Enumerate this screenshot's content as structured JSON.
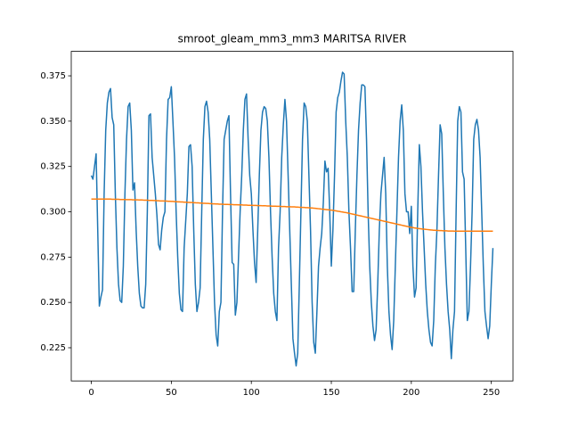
{
  "chart_data": {
    "type": "line",
    "title": "smroot_gleam_mm3_mm3 MARITSA RIVER",
    "x": [
      0,
      1,
      2,
      3,
      4,
      5,
      6,
      7,
      8,
      9,
      10,
      11,
      12,
      13,
      14,
      15,
      16,
      17,
      18,
      19,
      20,
      21,
      22,
      23,
      24,
      25,
      26,
      27,
      28,
      29,
      30,
      31,
      32,
      33,
      34,
      35,
      36,
      37,
      38,
      39,
      40,
      41,
      42,
      43,
      44,
      45,
      46,
      47,
      48,
      49,
      50,
      51,
      52,
      53,
      54,
      55,
      56,
      57,
      58,
      59,
      60,
      61,
      62,
      63,
      64,
      65,
      66,
      67,
      68,
      69,
      70,
      71,
      72,
      73,
      74,
      75,
      76,
      77,
      78,
      79,
      80,
      81,
      82,
      83,
      84,
      85,
      86,
      87,
      88,
      89,
      90,
      91,
      92,
      93,
      94,
      95,
      96,
      97,
      98,
      99,
      100,
      101,
      102,
      103,
      104,
      105,
      106,
      107,
      108,
      109,
      110,
      111,
      112,
      113,
      114,
      115,
      116,
      117,
      118,
      119,
      120,
      121,
      122,
      123,
      124,
      125,
      126,
      127,
      128,
      129,
      130,
      131,
      132,
      133,
      134,
      135,
      136,
      137,
      138,
      139,
      140,
      141,
      142,
      143,
      144,
      145,
      146,
      147,
      148,
      149,
      150,
      151,
      152,
      153,
      154,
      155,
      156,
      157,
      158,
      159,
      160,
      161,
      162,
      163,
      164,
      165,
      166,
      167,
      168,
      169,
      170,
      171,
      172,
      173,
      174,
      175,
      176,
      177,
      178,
      179,
      180,
      181,
      182,
      183,
      184,
      185,
      186,
      187,
      188,
      189,
      190,
      191,
      192,
      193,
      194,
      195,
      196,
      197,
      198,
      199,
      200,
      201,
      202,
      203,
      204,
      205,
      206,
      207,
      208,
      209,
      210,
      211,
      212,
      213,
      214,
      215,
      216,
      217,
      218,
      219,
      220,
      221,
      222,
      223,
      224,
      225,
      226,
      227,
      228,
      229,
      230,
      231,
      232,
      233,
      234,
      235,
      236,
      237,
      238,
      239,
      240,
      241,
      242,
      243,
      244,
      245,
      246,
      247,
      248,
      249,
      250,
      251
    ],
    "series": [
      {
        "color": "#1f77b4",
        "values": [
          0.32,
          0.318,
          0.325,
          0.332,
          0.29,
          0.248,
          0.253,
          0.257,
          0.31,
          0.345,
          0.36,
          0.366,
          0.368,
          0.352,
          0.348,
          0.31,
          0.28,
          0.26,
          0.251,
          0.25,
          0.27,
          0.31,
          0.34,
          0.358,
          0.36,
          0.345,
          0.312,
          0.316,
          0.29,
          0.27,
          0.255,
          0.248,
          0.247,
          0.247,
          0.26,
          0.3,
          0.353,
          0.354,
          0.33,
          0.32,
          0.31,
          0.298,
          0.282,
          0.279,
          0.29,
          0.297,
          0.3,
          0.34,
          0.362,
          0.363,
          0.369,
          0.35,
          0.33,
          0.3,
          0.275,
          0.255,
          0.246,
          0.245,
          0.28,
          0.295,
          0.31,
          0.336,
          0.337,
          0.325,
          0.29,
          0.26,
          0.245,
          0.25,
          0.258,
          0.3,
          0.34,
          0.358,
          0.361,
          0.355,
          0.34,
          0.31,
          0.28,
          0.25,
          0.232,
          0.226,
          0.245,
          0.25,
          0.3,
          0.34,
          0.345,
          0.35,
          0.353,
          0.31,
          0.272,
          0.271,
          0.243,
          0.25,
          0.275,
          0.3,
          0.32,
          0.345,
          0.362,
          0.365,
          0.34,
          0.32,
          0.31,
          0.29,
          0.272,
          0.261,
          0.29,
          0.32,
          0.345,
          0.355,
          0.358,
          0.357,
          0.35,
          0.33,
          0.3,
          0.275,
          0.255,
          0.245,
          0.24,
          0.28,
          0.3,
          0.33,
          0.348,
          0.362,
          0.35,
          0.32,
          0.29,
          0.26,
          0.23,
          0.222,
          0.215,
          0.222,
          0.26,
          0.3,
          0.34,
          0.36,
          0.358,
          0.35,
          0.32,
          0.29,
          0.25,
          0.228,
          0.222,
          0.245,
          0.27,
          0.28,
          0.288,
          0.305,
          0.328,
          0.322,
          0.324,
          0.3,
          0.27,
          0.29,
          0.32,
          0.355,
          0.363,
          0.366,
          0.372,
          0.377,
          0.376,
          0.35,
          0.33,
          0.3,
          0.28,
          0.256,
          0.256,
          0.29,
          0.32,
          0.345,
          0.36,
          0.37,
          0.37,
          0.369,
          0.34,
          0.3,
          0.27,
          0.25,
          0.237,
          0.229,
          0.235,
          0.26,
          0.29,
          0.31,
          0.32,
          0.33,
          0.31,
          0.27,
          0.245,
          0.232,
          0.224,
          0.24,
          0.27,
          0.3,
          0.33,
          0.35,
          0.359,
          0.345,
          0.31,
          0.3,
          0.3,
          0.288,
          0.303,
          0.27,
          0.253,
          0.258,
          0.3,
          0.337,
          0.325,
          0.3,
          0.28,
          0.26,
          0.245,
          0.235,
          0.228,
          0.226,
          0.24,
          0.27,
          0.29,
          0.32,
          0.348,
          0.343,
          0.31,
          0.28,
          0.26,
          0.245,
          0.235,
          0.219,
          0.235,
          0.245,
          0.3,
          0.35,
          0.358,
          0.355,
          0.322,
          0.318,
          0.28,
          0.24,
          0.245,
          0.27,
          0.3,
          0.34,
          0.348,
          0.351,
          0.345,
          0.33,
          0.3,
          0.27,
          0.245,
          0.237,
          0.23,
          0.237,
          0.26,
          0.28
        ]
      },
      {
        "color": "#ff7f0e",
        "values": [
          0.307,
          0.307,
          0.307,
          0.307,
          0.307,
          0.307,
          0.307,
          0.307,
          0.307,
          0.307,
          0.307,
          0.307,
          0.307,
          0.3069,
          0.3069,
          0.3069,
          0.3069,
          0.3069,
          0.3068,
          0.3068,
          0.3068,
          0.3068,
          0.3067,
          0.3067,
          0.3067,
          0.3067,
          0.3066,
          0.3066,
          0.3066,
          0.3066,
          0.3065,
          0.3065,
          0.3065,
          0.3064,
          0.3064,
          0.3064,
          0.3063,
          0.3063,
          0.3063,
          0.3062,
          0.3062,
          0.3061,
          0.3061,
          0.306,
          0.306,
          0.306,
          0.3059,
          0.3059,
          0.3058,
          0.3058,
          0.3057,
          0.3057,
          0.3056,
          0.3056,
          0.3055,
          0.3055,
          0.3054,
          0.3054,
          0.3053,
          0.3053,
          0.3052,
          0.3052,
          0.3051,
          0.3051,
          0.305,
          0.305,
          0.3049,
          0.3049,
          0.3048,
          0.3048,
          0.3047,
          0.3047,
          0.3046,
          0.3046,
          0.3045,
          0.3045,
          0.3044,
          0.3044,
          0.3043,
          0.3043,
          0.3042,
          0.3042,
          0.3042,
          0.3041,
          0.3041,
          0.3041,
          0.304,
          0.304,
          0.304,
          0.3039,
          0.3039,
          0.3039,
          0.3038,
          0.3038,
          0.3038,
          0.3037,
          0.3037,
          0.3037,
          0.3036,
          0.3036,
          0.3036,
          0.3035,
          0.3035,
          0.3035,
          0.3034,
          0.3034,
          0.3034,
          0.3033,
          0.3033,
          0.3033,
          0.3032,
          0.3032,
          0.3032,
          0.3031,
          0.3031,
          0.3031,
          0.303,
          0.303,
          0.303,
          0.3029,
          0.3029,
          0.3029,
          0.3028,
          0.3028,
          0.3028,
          0.3027,
          0.3027,
          0.3027,
          0.3026,
          0.3026,
          0.3025,
          0.3025,
          0.3024,
          0.3024,
          0.3023,
          0.3023,
          0.3022,
          0.3021,
          0.3021,
          0.302,
          0.3019,
          0.3018,
          0.3017,
          0.3016,
          0.3015,
          0.3014,
          0.3013,
          0.3012,
          0.3011,
          0.301,
          0.3009,
          0.3008,
          0.3006,
          0.3005,
          0.3003,
          0.3002,
          0.3,
          0.2999,
          0.2997,
          0.2996,
          0.2994,
          0.2992,
          0.299,
          0.2988,
          0.2986,
          0.2984,
          0.2982,
          0.298,
          0.2978,
          0.2976,
          0.2974,
          0.2972,
          0.297,
          0.2968,
          0.2966,
          0.2964,
          0.2962,
          0.296,
          0.2958,
          0.2956,
          0.2954,
          0.2952,
          0.295,
          0.2948,
          0.2946,
          0.2944,
          0.2942,
          0.294,
          0.2938,
          0.2936,
          0.2934,
          0.2932,
          0.293,
          0.2928,
          0.2926,
          0.2924,
          0.2922,
          0.292,
          0.2918,
          0.2916,
          0.2914,
          0.2913,
          0.2911,
          0.291,
          0.2908,
          0.2907,
          0.2906,
          0.2905,
          0.2904,
          0.2903,
          0.2902,
          0.2901,
          0.29,
          0.2899,
          0.2898,
          0.2898,
          0.2897,
          0.2897,
          0.2896,
          0.2896,
          0.2895,
          0.2895,
          0.2895,
          0.2894,
          0.2894,
          0.2894,
          0.2894,
          0.2893,
          0.2893,
          0.2893,
          0.2893,
          0.2893,
          0.2893,
          0.2893,
          0.2893,
          0.2893,
          0.2893,
          0.2893,
          0.2893,
          0.2893,
          0.2893,
          0.2893,
          0.2893,
          0.2893,
          0.2893,
          0.2893,
          0.2893,
          0.2893,
          0.2893,
          0.2893,
          0.2893,
          0.2893
        ]
      }
    ],
    "xlim": [
      -12.55,
      263.55
    ],
    "xticks": [
      0,
      50,
      100,
      150,
      200,
      250
    ],
    "ylim": [
      0.2067,
      0.3885
    ],
    "yticks": [
      0.225,
      {
        "value": 0.25,
        "label": "0.250"
      },
      0.275,
      {
        "value": 0.3,
        "label": "0.300"
      },
      0.325,
      {
        "value": 0.35,
        "label": "0.350"
      },
      0.375
    ]
  }
}
